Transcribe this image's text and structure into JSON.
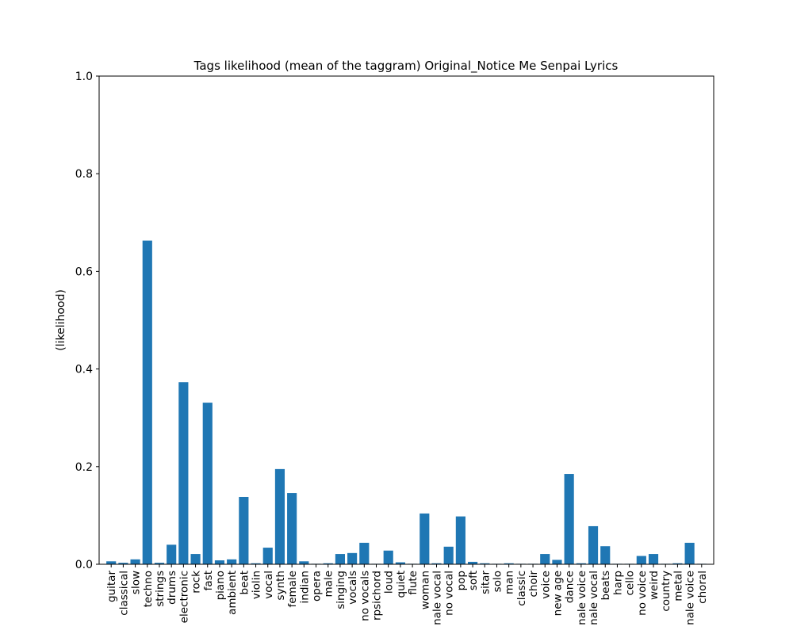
{
  "chart_data": {
    "type": "bar",
    "title": "Tags likelihood (mean of the taggram) Original_Notice Me Senpai Lyrics",
    "xlabel": "",
    "ylabel": "(likelihood)",
    "ylim": [
      0,
      1
    ],
    "yticks": [
      "0.0",
      "0.2",
      "0.4",
      "0.6",
      "0.8",
      "1.0"
    ],
    "grid": false,
    "bar_color": "#1f77b4",
    "categories": [
      "guitar",
      "classical",
      "slow",
      "techno",
      "strings",
      "drums",
      "electronic",
      "rock",
      "fast",
      "piano",
      "ambient",
      "beat",
      "violin",
      "vocal",
      "synth",
      "female",
      "indian",
      "opera",
      "male",
      "singing",
      "vocals",
      "no vocals",
      "harpsichord",
      "loud",
      "quiet",
      "flute",
      "woman",
      "male vocal",
      "no vocal",
      "pop",
      "soft",
      "sitar",
      "solo",
      "man",
      "classic",
      "choir",
      "voice",
      "new age",
      "dance",
      "male voice",
      "female vocal",
      "beats",
      "harp",
      "cello",
      "no voice",
      "weird",
      "country",
      "metal",
      "female voice",
      "choral"
    ],
    "tick_labels": [
      "guitar",
      "classical",
      "slow",
      "techno",
      "strings",
      "drums",
      "electronic",
      "rock",
      "fast",
      "piano",
      "ambient",
      "beat",
      "violin",
      "vocal",
      "synth",
      "female",
      "indian",
      "opera",
      "male",
      "singing",
      "vocals",
      "no vocals",
      "rpsichord",
      "loud",
      "quiet",
      "flute",
      "woman",
      "nale vocal",
      "no vocal",
      "pop",
      "soft",
      "sitar",
      "solo",
      "man",
      "classic",
      "choir",
      "voice",
      "new age",
      "dance",
      "nale voice",
      "nale vocal",
      "beats",
      "harp",
      "cello",
      "no voice",
      "weird",
      "country",
      "metal",
      "nale voice",
      "choral"
    ],
    "values": [
      0.006,
      0.003,
      0.01,
      0.663,
      0.003,
      0.04,
      0.373,
      0.021,
      0.331,
      0.008,
      0.01,
      0.138,
      0.002,
      0.034,
      0.195,
      0.146,
      0.006,
      0.001,
      0.002,
      0.021,
      0.023,
      0.044,
      0.001,
      0.028,
      0.004,
      0.001,
      0.104,
      0.002,
      0.036,
      0.098,
      0.005,
      0.002,
      0.001,
      0.002,
      0.001,
      0.001,
      0.021,
      0.009,
      0.185,
      0.002,
      0.078,
      0.037,
      0.001,
      0.001,
      0.017,
      0.021,
      0.001,
      0.002,
      0.044,
      0.001
    ]
  }
}
